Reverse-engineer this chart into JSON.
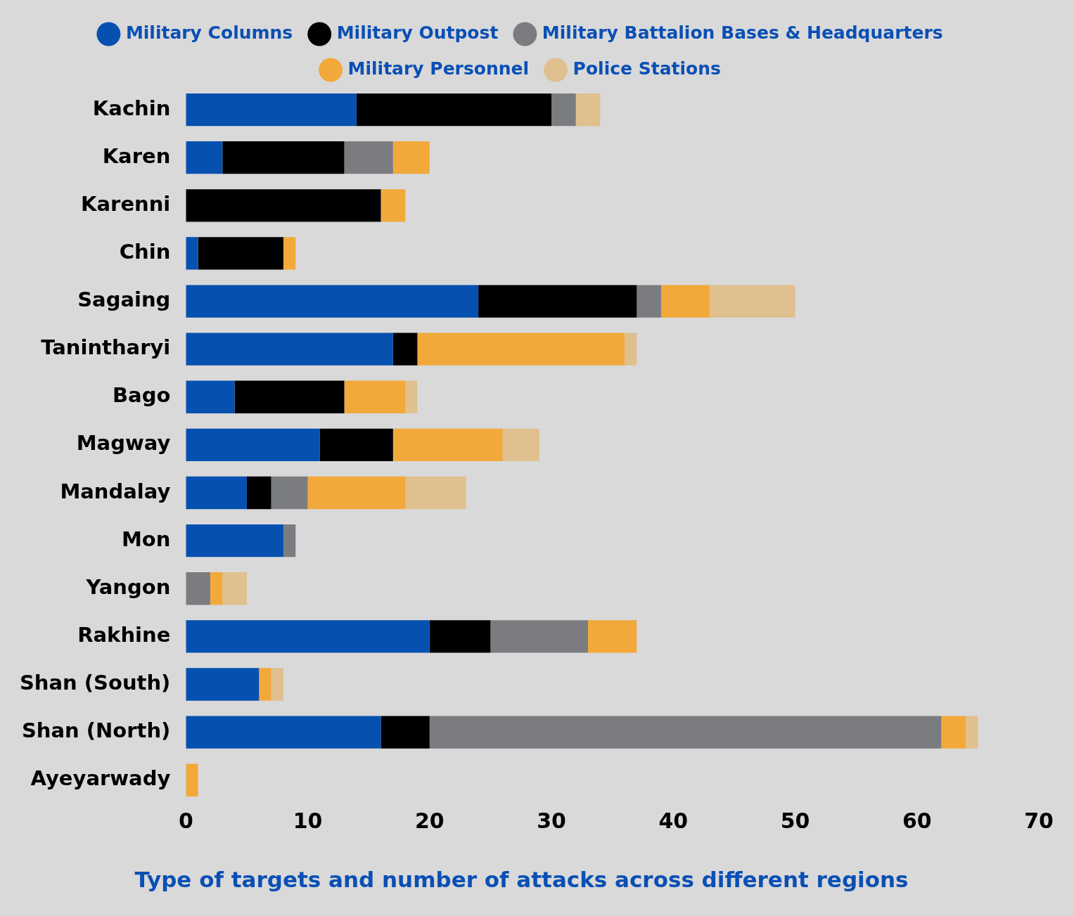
{
  "chart_data": {
    "type": "bar",
    "orientation": "horizontal",
    "stacked": true,
    "title": "Type of targets and number of attacks across different regions",
    "categories": [
      "Kachin",
      "Karen",
      "Karenni",
      "Chin",
      "Sagaing",
      "Tanintharyi",
      "Bago",
      "Magway",
      "Mandalay",
      "Mon",
      "Yangon",
      "Rakhine",
      "Shan (South)",
      "Shan (North)",
      "Ayeyarwady"
    ],
    "series": [
      {
        "name": "Military Columns",
        "color": "#0650b0",
        "values": [
          14,
          3,
          0,
          1,
          24,
          17,
          4,
          11,
          5,
          8,
          0,
          20,
          6,
          16,
          0
        ]
      },
      {
        "name": "Military Outpost",
        "color": "#000000",
        "values": [
          16,
          10,
          16,
          7,
          13,
          2,
          9,
          6,
          2,
          0,
          0,
          5,
          0,
          4,
          0
        ]
      },
      {
        "name": "Military Battalion Bases & Headquarters",
        "color": "#7a7c80",
        "values": [
          2,
          4,
          0,
          0,
          2,
          0,
          0,
          0,
          3,
          1,
          2,
          8,
          0,
          42,
          0
        ]
      },
      {
        "name": "Military Personnel",
        "color": "#f2a93b",
        "values": [
          0,
          3,
          2,
          1,
          4,
          17,
          5,
          9,
          8,
          0,
          1,
          4,
          1,
          2,
          1
        ]
      },
      {
        "name": "Police Stations",
        "color": "#dfc08e",
        "values": [
          2,
          0,
          0,
          0,
          7,
          1,
          1,
          3,
          5,
          0,
          2,
          0,
          1,
          1,
          0
        ]
      }
    ],
    "xlim": [
      0,
      70
    ],
    "xticks": [
      0,
      10,
      20,
      30,
      40,
      50,
      60,
      70
    ],
    "grid": false,
    "legend": "top",
    "marker": "circle"
  }
}
